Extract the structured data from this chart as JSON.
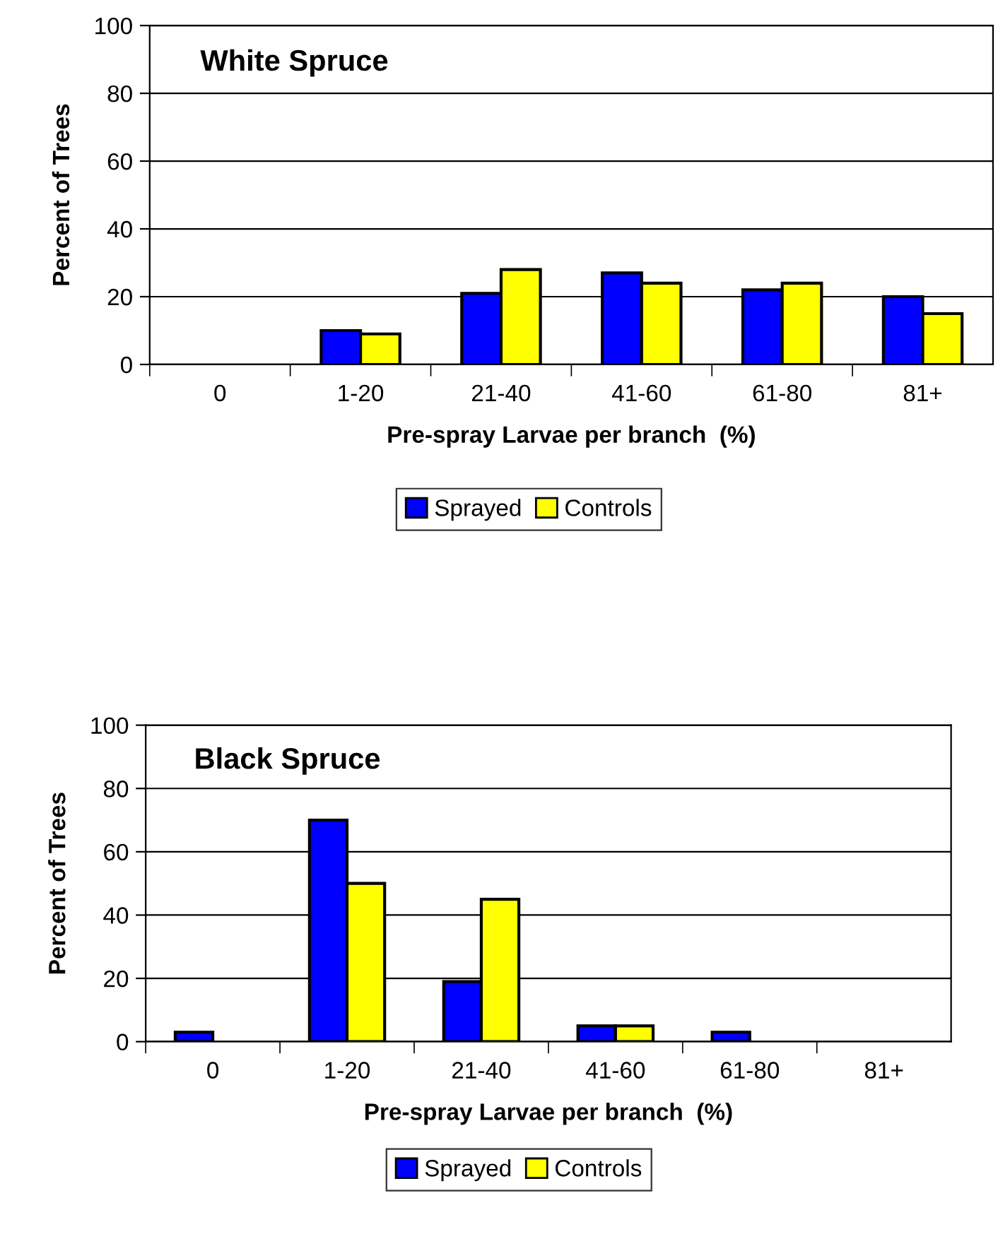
{
  "chart_data": [
    {
      "type": "bar",
      "title": "White Spruce",
      "xlabel": "Pre-spray Larvae per branch  (%)",
      "ylabel": "Percent of Trees",
      "categories": [
        "0",
        "1-20",
        "21-40",
        "41-60",
        "61-80",
        "81+"
      ],
      "series": [
        {
          "name": "Sprayed",
          "color": "#0000ff",
          "values": [
            0,
            10,
            21,
            27,
            22,
            20
          ]
        },
        {
          "name": "Controls",
          "color": "#ffff00",
          "values": [
            0,
            9,
            28,
            24,
            24,
            15
          ]
        }
      ],
      "ylim": [
        0,
        100
      ],
      "yticks": [
        0,
        20,
        40,
        60,
        80,
        100
      ],
      "grid": "y",
      "legend": "bottom"
    },
    {
      "type": "bar",
      "title": "Black Spruce",
      "xlabel": "Pre-spray Larvae per branch  (%)",
      "ylabel": "Percent of Trees",
      "categories": [
        "0",
        "1-20",
        "21-40",
        "41-60",
        "61-80",
        "81+"
      ],
      "series": [
        {
          "name": "Sprayed",
          "color": "#0000ff",
          "values": [
            3,
            70,
            19,
            5,
            3,
            0
          ]
        },
        {
          "name": "Controls",
          "color": "#ffff00",
          "values": [
            0,
            50,
            45,
            5,
            0,
            0
          ]
        }
      ],
      "ylim": [
        0,
        100
      ],
      "yticks": [
        0,
        20,
        40,
        60,
        80,
        100
      ],
      "grid": "y",
      "legend": "bottom"
    }
  ]
}
